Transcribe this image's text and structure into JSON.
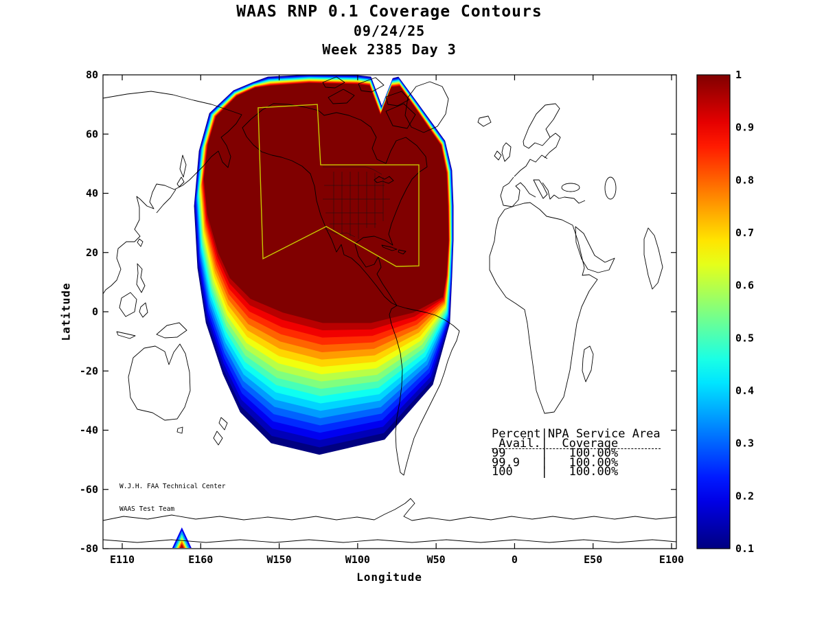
{
  "title": {
    "line1": "WAAS RNP 0.1 Coverage Contours",
    "line2": "09/24/25",
    "line3": "Week 2385 Day 3"
  },
  "axes": {
    "xlabel": "Longitude",
    "ylabel": "Latitude",
    "x_ticks": {
      "labels": [
        "E110",
        "E160",
        "W150",
        "W100",
        "W50",
        "0",
        "E50",
        "E100"
      ],
      "lons_deg_east": [
        110,
        160,
        210,
        260,
        310,
        360,
        410,
        460
      ]
    },
    "y_ticks": [
      "80",
      "60",
      "40",
      "20",
      "0",
      "-20",
      "-40",
      "-60",
      "-80"
    ]
  },
  "colorbar": {
    "tick_labels": [
      "1",
      "0.9",
      "0.8",
      "0.7",
      "0.6",
      "0.5",
      "0.4",
      "0.3",
      "0.2",
      "0.1"
    ],
    "min": 0.1,
    "max": 1
  },
  "credit": {
    "line1": "W.J.H. FAA Technical Center",
    "line2": "WAAS Test Team"
  },
  "availability_table": {
    "header_left": "Percent",
    "header_right": "NPA Service Area",
    "subheader_left": "Avail.",
    "subheader_right": "Coverage",
    "rows": [
      {
        "avail": "99",
        "coverage": "100.00%"
      },
      {
        "avail": "99.9",
        "coverage": "100.00%"
      },
      {
        "avail": "100",
        "coverage": "100.00%"
      }
    ]
  },
  "colors": {
    "npa_boundary": "#c9c900",
    "coastline": "#000000",
    "axis": "#000000",
    "background": "#ffffff"
  },
  "chart_data": {
    "type": "heatmap",
    "subtype": "filled-contour-geographic-map",
    "title": "WAAS RNP 0.1 Coverage Contours",
    "subtitle_date": "09/24/25",
    "subtitle_week": "Week 2385 Day 3",
    "xlabel": "Longitude",
    "ylabel": "Latitude",
    "x_tick_labels": [
      "E110",
      "E160",
      "W150",
      "W100",
      "W50",
      "0",
      "E50",
      "E100"
    ],
    "x_tick_lons_deg_east": [
      110,
      160,
      210,
      260,
      310,
      360,
      410,
      460
    ],
    "y_tick_lats": [
      80,
      60,
      40,
      20,
      0,
      -20,
      -40,
      -60,
      -80
    ],
    "xlim_lons_deg_east": [
      97.8,
      463.3
    ],
    "ylim_lat": [
      -80,
      80
    ],
    "colormap": "jet",
    "colorbar_range": [
      0.1,
      1
    ],
    "colorbar_ticks": [
      1,
      0.9,
      0.8,
      0.7,
      0.6,
      0.5,
      0.4,
      0.3,
      0.2,
      0.1
    ],
    "contour_levels": [
      0.1,
      0.15,
      0.2,
      0.25,
      0.3,
      0.35,
      0.4,
      0.45,
      0.5,
      0.55,
      0.6,
      0.65,
      0.7,
      0.75,
      0.8,
      0.85,
      0.9,
      0.95,
      1.0
    ],
    "contours": {
      "note": "WAAS RNP 0.1 availability contours; 1.0 plateau covers North America and adjacent oceans, decaying south over the Pacific to 0.1 near 48S",
      "outer_boundary_level": 0.1,
      "outer_boundary_lonlat": [
        [
          202.8,
          79.3
        ],
        [
          229,
          80
        ],
        [
          259.6,
          79.8
        ],
        [
          268.4,
          79.3
        ],
        [
          275.4,
          69.3
        ],
        [
          282.4,
          78.8
        ],
        [
          285.9,
          79.3
        ],
        [
          298.1,
          70.5
        ],
        [
          315.6,
          57.7
        ],
        [
          320,
          47.8
        ],
        [
          320.9,
          35.7
        ],
        [
          320.9,
          24.1
        ],
        [
          320,
          11.4
        ],
        [
          318.7,
          -3.7
        ],
        [
          307.8,
          -24.6
        ],
        [
          277.1,
          -43.1
        ],
        [
          235.6,
          -48.2
        ],
        [
          204.9,
          -44.3
        ],
        [
          185.3,
          -33.9
        ],
        [
          174.3,
          -21.1
        ],
        [
          163.4,
          -3.7
        ],
        [
          158.1,
          14.8
        ],
        [
          155.9,
          35.7
        ],
        [
          159,
          54.3
        ],
        [
          165.6,
          67
        ],
        [
          180.9,
          74.7
        ],
        [
          193.1,
          77.4
        ]
      ],
      "inner_boundary_level": 1.0,
      "inner_boundary_lonlat": [
        [
          204.9,
          76.3
        ],
        [
          229,
          77.2
        ],
        [
          259.6,
          76.8
        ],
        [
          267.5,
          76.3
        ],
        [
          274.5,
          66.3
        ],
        [
          281.5,
          75.8
        ],
        [
          286.8,
          76.1
        ],
        [
          297.3,
          68.2
        ],
        [
          313,
          56.1
        ],
        [
          316.5,
          46.8
        ],
        [
          317.4,
          35.7
        ],
        [
          317.8,
          24.1
        ],
        [
          316.5,
          12.5
        ],
        [
          314.3,
          5.1
        ],
        [
          295.5,
          -0.2
        ],
        [
          268.4,
          -3.7
        ],
        [
          237.8,
          -3.7
        ],
        [
          212.4,
          -0.2
        ],
        [
          191.8,
          4.4
        ],
        [
          178.7,
          11.4
        ],
        [
          171.3,
          19.9
        ],
        [
          164.3,
          32.9
        ],
        [
          162.1,
          45
        ],
        [
          164.7,
          56.6
        ],
        [
          169.9,
          65.9
        ],
        [
          183.1,
          72.8
        ],
        [
          194.9,
          75.6
        ]
      ],
      "spike_near_antarctica": {
        "lon_deg_east": 148,
        "lat": -80,
        "max_level": 0.95
      }
    },
    "npa_service_area_boundary_lonlat": [
      [
        196.6,
        68.9
      ],
      [
        234.3,
        70
      ],
      [
        236.4,
        49.6
      ],
      [
        299,
        49.6
      ],
      [
        299,
        15.5
      ],
      [
        284.6,
        15.3
      ],
      [
        240,
        28.8
      ],
      [
        199.7,
        17.9
      ]
    ]
  }
}
